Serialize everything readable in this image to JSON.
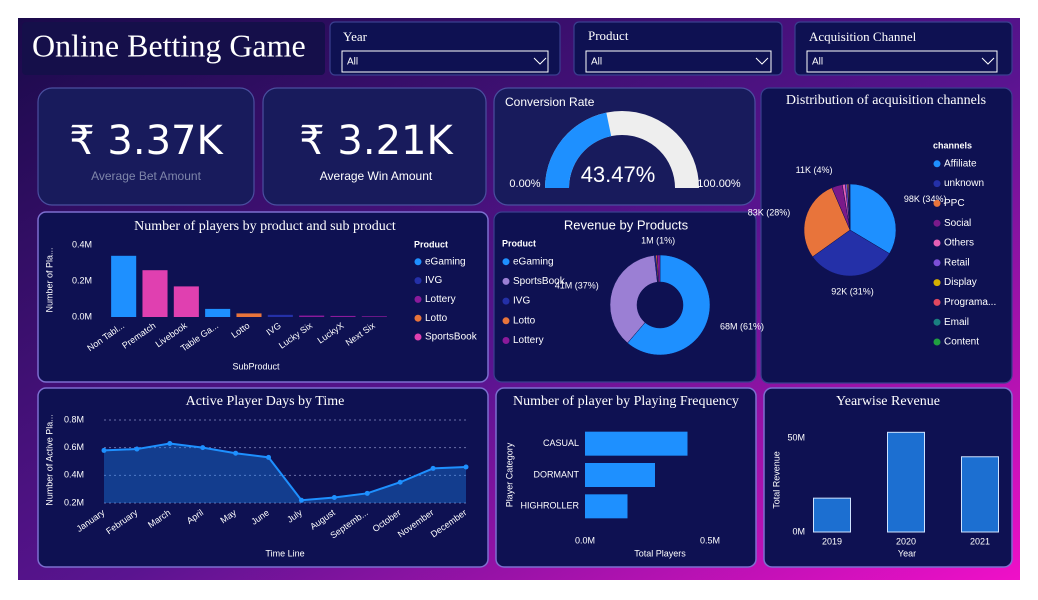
{
  "header": {
    "title": "Online Betting Game"
  },
  "filters": [
    {
      "label": "Year",
      "value": "All"
    },
    {
      "label": "Product",
      "value": "All"
    },
    {
      "label": "Acquisition Channel",
      "value": "All"
    }
  ],
  "kpis": [
    {
      "value": "₹ 3.37K",
      "label": "Average Bet Amount"
    },
    {
      "value": "₹ 3.21K",
      "label": "Average Win Amount"
    }
  ],
  "chart_data": [
    {
      "type": "gauge",
      "title": "Conversion Rate",
      "values": [
        43.47
      ],
      "value_labels": [
        "43.47%"
      ],
      "color": "#1e90ff",
      "ylim": [
        0,
        100
      ],
      "yticks": [
        {
          "value": 0,
          "label": "0.00%"
        },
        {
          "value": 100,
          "label": "100.00%"
        }
      ]
    },
    {
      "type": "bar",
      "title": "Number of players by product and sub product",
      "x_label": "SubProduct",
      "y_label": "Number of Pla...",
      "legend_title": "Product",
      "legend": "right",
      "grid": false,
      "categories": [
        "Non Tabl...",
        "Prematch",
        "Livebook",
        "Table Ga...",
        "Lotto",
        "IVG",
        "Lucky Six",
        "LuckyX",
        "Next Six"
      ],
      "series": [
        {
          "name": "eGaming",
          "color": "#1e90ff",
          "values": [
            340000,
            null,
            null,
            45000,
            null,
            null,
            null,
            null,
            null
          ]
        },
        {
          "name": "IVG",
          "color": "#2430a8",
          "values": [
            null,
            null,
            null,
            null,
            null,
            12000,
            null,
            null,
            null
          ]
        },
        {
          "name": "Lottery",
          "color": "#8b1a9b",
          "values": [
            null,
            null,
            null,
            null,
            null,
            null,
            8000,
            6000,
            4000
          ]
        },
        {
          "name": "Lotto",
          "color": "#e8743b",
          "values": [
            null,
            null,
            null,
            null,
            20000,
            null,
            null,
            null,
            null
          ]
        },
        {
          "name": "SportsBook",
          "color": "#e040b0",
          "values": [
            null,
            260000,
            170000,
            null,
            null,
            null,
            null,
            null,
            null
          ]
        }
      ],
      "ylim": [
        0,
        400000
      ],
      "yticks": [
        {
          "value": 0,
          "label": "0.0M"
        },
        {
          "value": 200000,
          "label": "0.2M"
        },
        {
          "value": 400000,
          "label": "0.4M"
        }
      ]
    },
    {
      "type": "donut",
      "title": "Revenue by Products",
      "legend_title": "Product",
      "legend": "left",
      "categories": [
        "eGaming",
        "SportsBook",
        "IVG",
        "Lotto",
        "Lottery"
      ],
      "values": [
        68,
        41,
        0.5,
        0.5,
        1
      ],
      "value_labels": [
        "68M (61%)",
        "41M (37%)",
        null,
        null,
        "1M (1%)"
      ],
      "colors": [
        "#1e90ff",
        "#9b7fd4",
        "#2430a8",
        "#e8743b",
        "#8b1a9b"
      ]
    },
    {
      "type": "pie",
      "title": "Distribution of acquisition channels",
      "legend_title": "channels",
      "legend": "right",
      "categories": [
        "Affiliate",
        "unknown",
        "PPC",
        "Social",
        "Others",
        "Retail",
        "Display",
        "Programa...",
        "Email",
        "Content"
      ],
      "values": [
        98,
        92,
        83,
        11,
        3,
        2,
        1,
        1,
        0.5,
        0.3
      ],
      "value_labels": [
        "98K (34%)",
        "92K (31%)",
        "83K (28%)",
        "11K (4%)",
        null,
        null,
        null,
        null,
        null,
        null
      ],
      "colors": [
        "#1e90ff",
        "#2430a8",
        "#e8743b",
        "#7a1a8a",
        "#e55fb4",
        "#7b4fd6",
        "#d4b000",
        "#e04860",
        "#1a8080",
        "#20a040"
      ]
    },
    {
      "type": "line",
      "title": "Active Player Days by Time",
      "x_label": "Time Line",
      "y_label": "Number of Active Pla...",
      "grid": true,
      "area": true,
      "color": "#1e90ff",
      "categories": [
        "January",
        "February",
        "March",
        "April",
        "May",
        "June",
        "July",
        "August",
        "Septemb...",
        "October",
        "November",
        "December"
      ],
      "values": [
        580000,
        590000,
        630000,
        600000,
        560000,
        530000,
        220000,
        240000,
        270000,
        350000,
        450000,
        460000
      ],
      "ylim": [
        200000,
        800000
      ],
      "yticks": [
        {
          "value": 200000,
          "label": "0.2M"
        },
        {
          "value": 400000,
          "label": "0.4M"
        },
        {
          "value": 600000,
          "label": "0.6M"
        },
        {
          "value": 800000,
          "label": "0.8M"
        }
      ]
    },
    {
      "type": "hbar",
      "title": "Number of player by Playing Frequency",
      "x_label": "Total Players",
      "y_label": "Player Category",
      "grid": false,
      "color": "#1e90ff",
      "categories": [
        "CASUAL",
        "DORMANT",
        "HIGHROLLER"
      ],
      "values": [
        410000,
        280000,
        170000
      ],
      "xlim": [
        0,
        620000
      ],
      "xticks": [
        {
          "value": 0,
          "label": "0.0M"
        },
        {
          "value": 500000,
          "label": "0.5M"
        }
      ]
    },
    {
      "type": "bar",
      "title": "Yearwise Revenue",
      "x_label": "Year",
      "y_label": "Total Revenue",
      "grid": false,
      "color": "#1c6fd1",
      "categories": [
        "2019",
        "2020",
        "2021"
      ],
      "values": [
        18000000,
        53000000,
        40000000
      ],
      "ylim": [
        0,
        57000000
      ],
      "yticks": [
        {
          "value": 0,
          "label": "0M"
        },
        {
          "value": 50000000,
          "label": "50M"
        }
      ]
    }
  ]
}
